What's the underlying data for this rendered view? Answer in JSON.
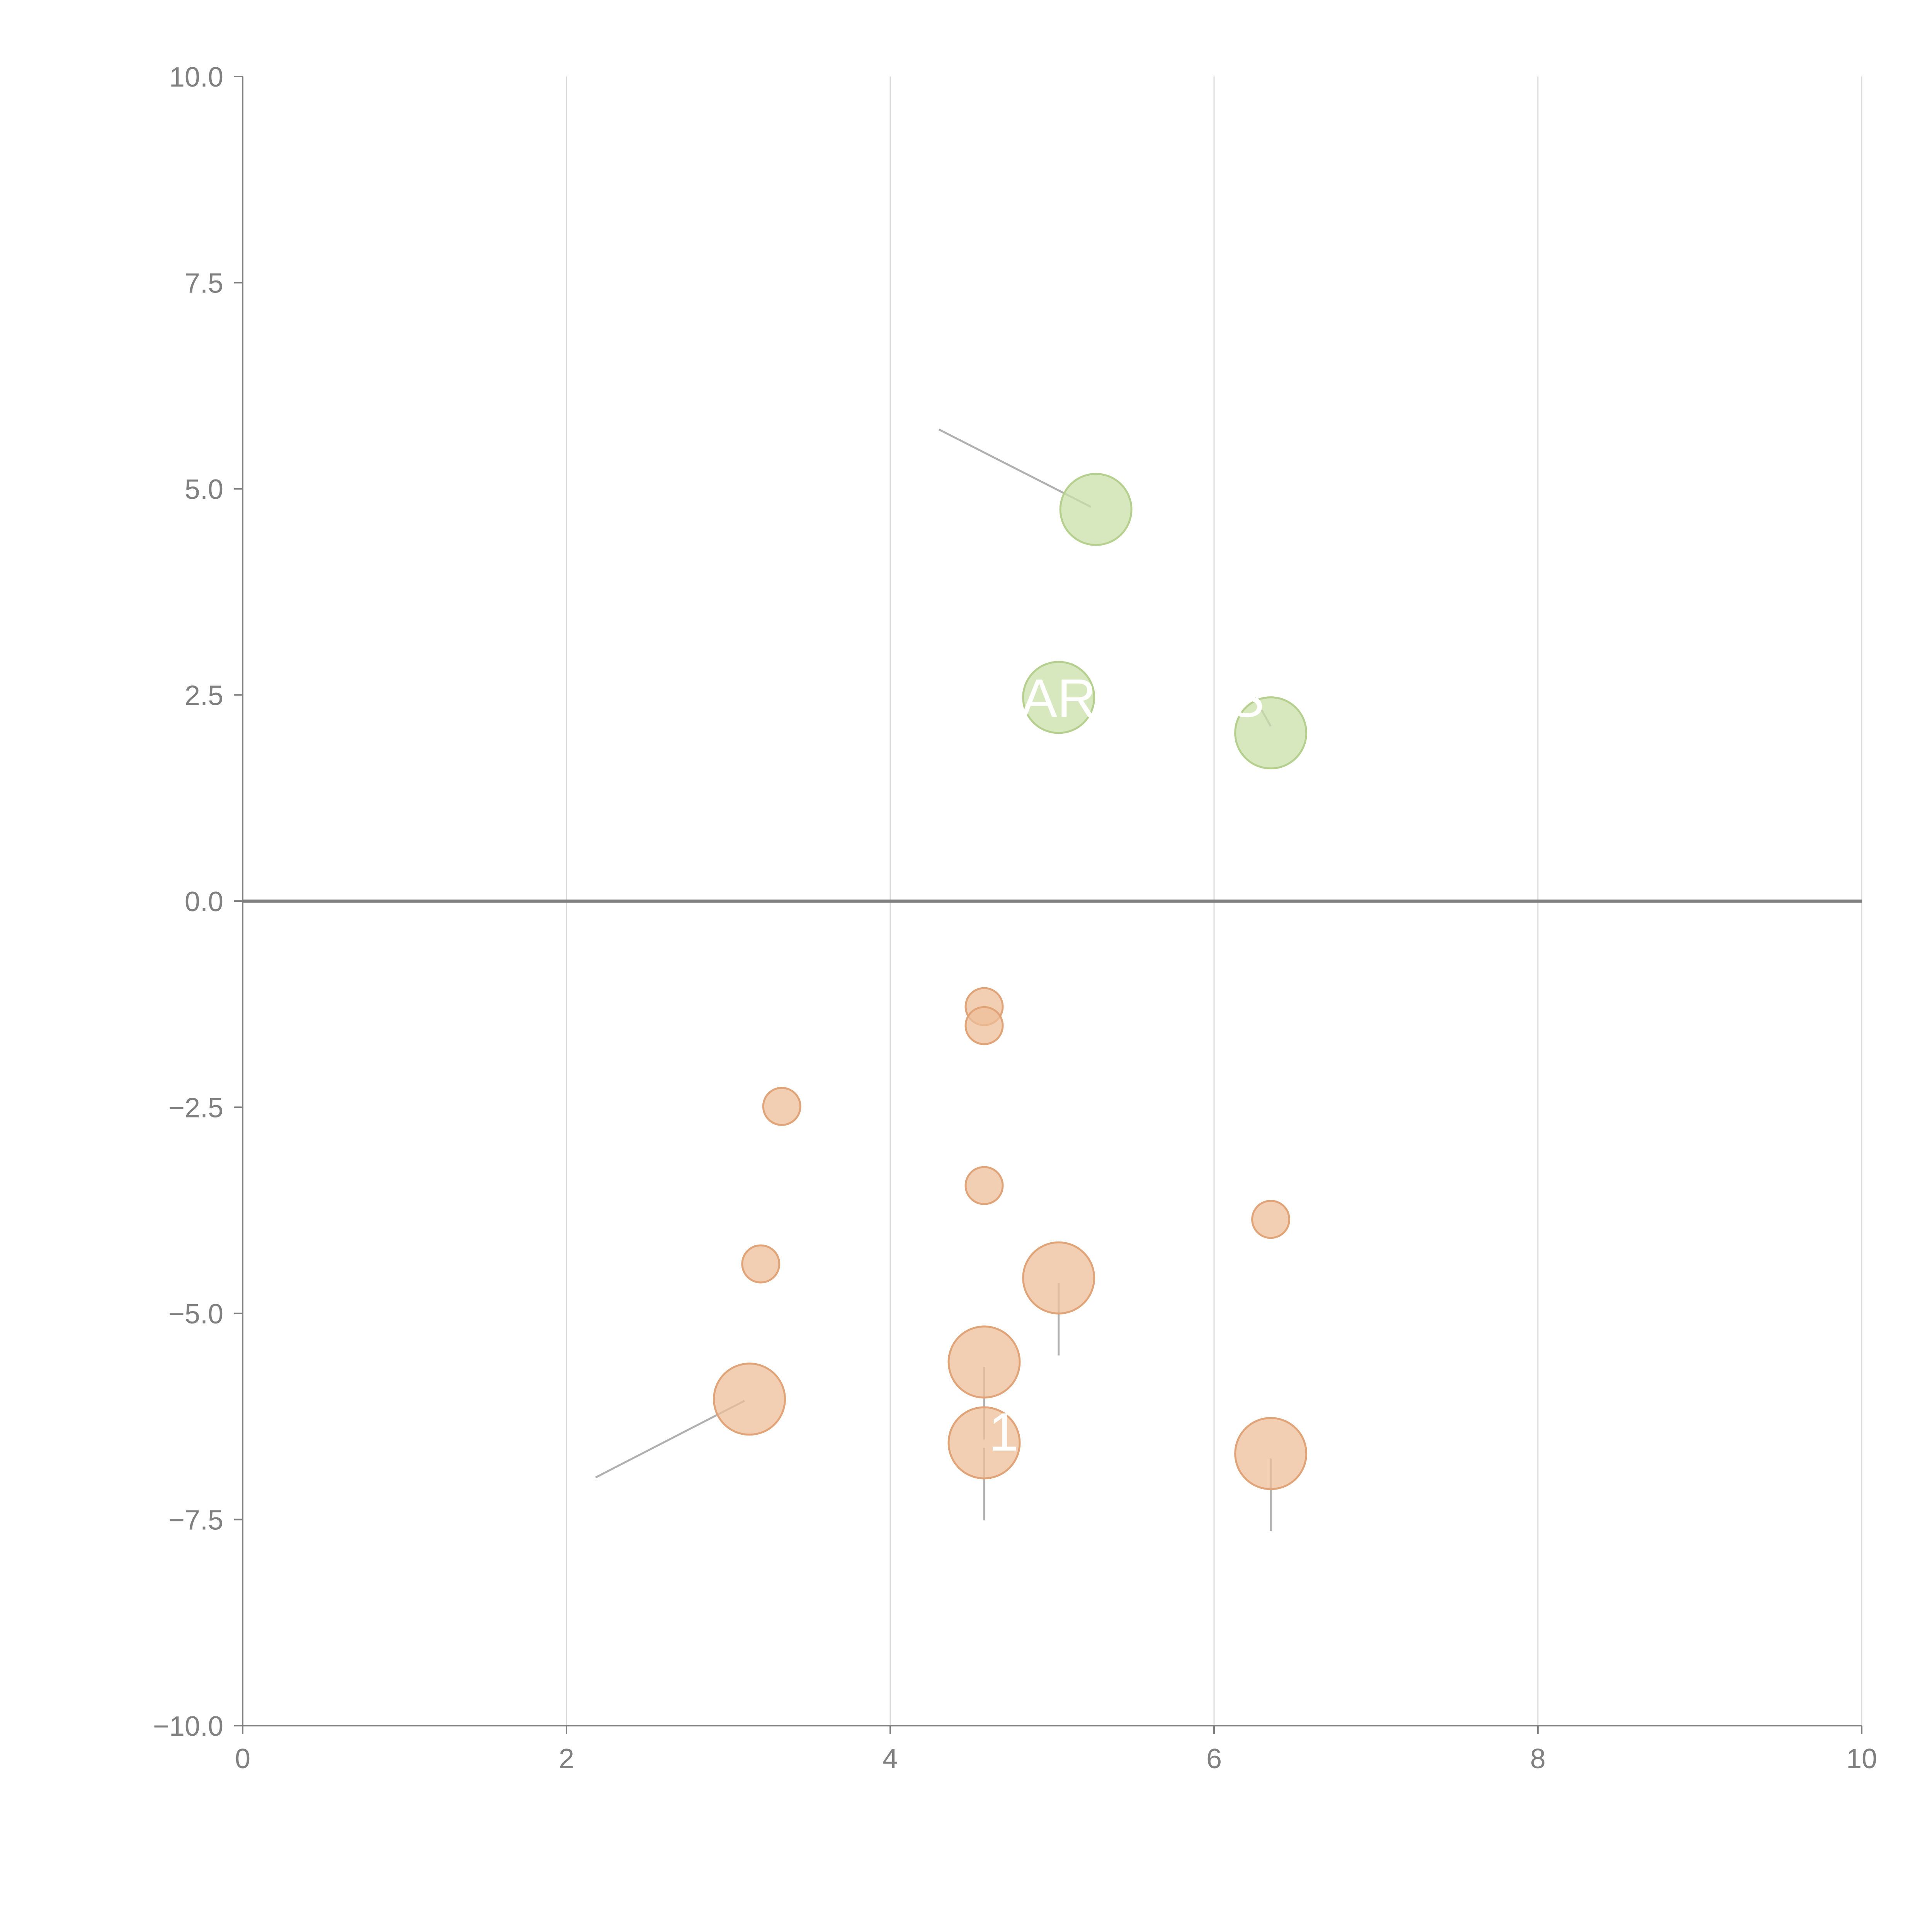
{
  "chart_data": {
    "type": "scatter",
    "title": "",
    "xlabel": "",
    "ylabel": "",
    "xlim": [
      0,
      10
    ],
    "ylim": [
      -10,
      10
    ],
    "x_ticks": [
      "0",
      "2",
      "4",
      "6",
      "8",
      "10"
    ],
    "y_ticks": [
      "10.0",
      "7.5",
      "5.0",
      "2.5",
      "0.0",
      "−2.5",
      "−5.0",
      "−7.5",
      "−10.0"
    ],
    "grid": "vertical",
    "zero_line": true,
    "colors": {
      "positive": "#c9dfa8",
      "negative": "#eebf98"
    },
    "points": [
      {
        "x": 5.27,
        "y": 4.75,
        "size": "large",
        "group": "positive"
      },
      {
        "x": 5.04,
        "y": 2.47,
        "size": "large",
        "group": "positive"
      },
      {
        "x": 6.35,
        "y": 2.04,
        "size": "large",
        "group": "positive"
      },
      {
        "x": 4.58,
        "y": -1.28,
        "size": "small",
        "group": "negative"
      },
      {
        "x": 4.58,
        "y": -1.51,
        "size": "small",
        "group": "negative"
      },
      {
        "x": 3.33,
        "y": -2.49,
        "size": "small",
        "group": "negative"
      },
      {
        "x": 4.58,
        "y": -3.45,
        "size": "small",
        "group": "negative"
      },
      {
        "x": 6.35,
        "y": -3.86,
        "size": "small",
        "group": "negative"
      },
      {
        "x": 3.2,
        "y": -4.4,
        "size": "small",
        "group": "negative"
      },
      {
        "x": 5.04,
        "y": -4.57,
        "size": "large",
        "group": "negative"
      },
      {
        "x": 4.58,
        "y": -5.59,
        "size": "large",
        "group": "negative"
      },
      {
        "x": 3.13,
        "y": -6.04,
        "size": "large",
        "group": "negative"
      },
      {
        "x": 4.58,
        "y": -6.57,
        "size": "large",
        "group": "negative"
      },
      {
        "x": 6.35,
        "y": -6.7,
        "size": "large",
        "group": "negative"
      }
    ],
    "connectors": [
      {
        "from": [
          5.24,
          4.78
        ],
        "to": [
          4.3,
          5.72
        ]
      },
      {
        "from": [
          6.35,
          2.12
        ],
        "to": [
          6.25,
          2.47
        ]
      },
      {
        "from": [
          5.04,
          -4.63
        ],
        "to": [
          5.04,
          -5.51
        ]
      },
      {
        "from": [
          4.58,
          -5.65
        ],
        "to": [
          4.58,
          -6.53
        ]
      },
      {
        "from": [
          3.1,
          -6.06
        ],
        "to": [
          2.18,
          -6.99
        ]
      },
      {
        "from": [
          4.58,
          -6.63
        ],
        "to": [
          4.58,
          -7.51
        ]
      },
      {
        "from": [
          6.35,
          -6.76
        ],
        "to": [
          6.35,
          -7.64
        ]
      }
    ],
    "annotations": [
      {
        "text": "AR",
        "x": 5.04,
        "y": 2.47
      },
      {
        "text": "S",
        "x": 6.2,
        "y": 2.47
      },
      {
        "text": "1",
        "x": 4.7,
        "y": -6.43
      }
    ]
  }
}
